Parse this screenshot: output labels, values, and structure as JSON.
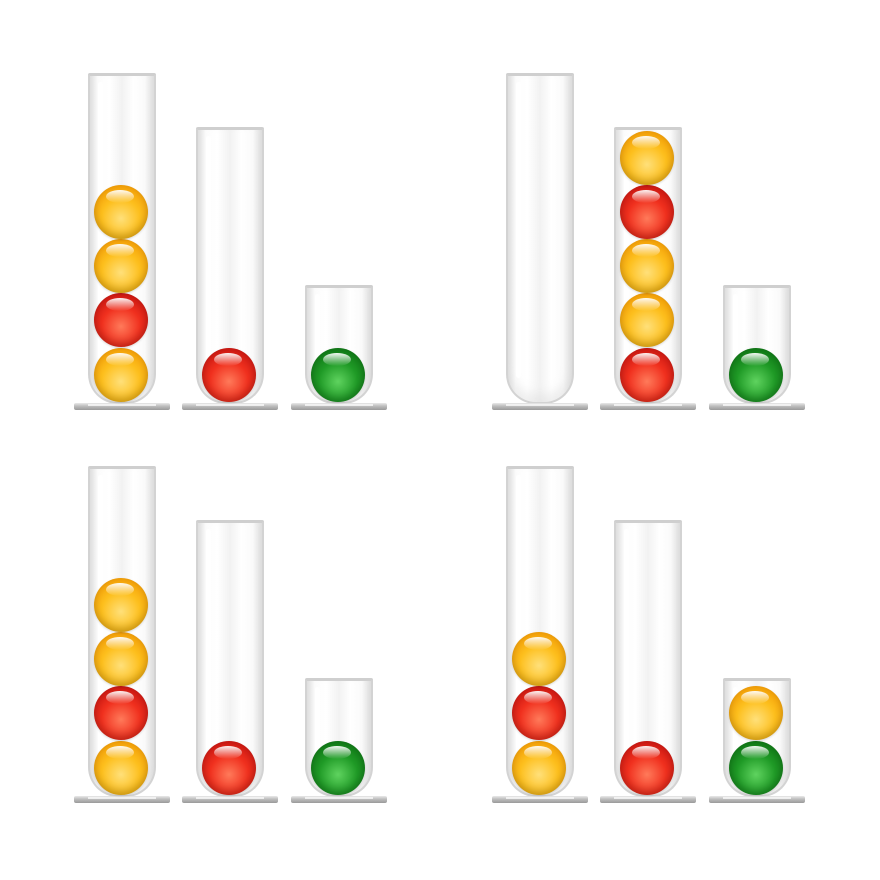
{
  "colors": {
    "yellow": "#fdbf1d",
    "red": "#f0301e",
    "green": "#1f9a26"
  },
  "panels": [
    {
      "id": 1,
      "tubes": [
        [
          "yellow",
          "red",
          "yellow",
          "yellow"
        ],
        [
          "red"
        ],
        [
          "green"
        ]
      ]
    },
    {
      "id": 2,
      "tubes": [
        [],
        [
          "red",
          "yellow",
          "yellow",
          "red",
          "yellow"
        ],
        [
          "green"
        ]
      ]
    },
    {
      "id": 3,
      "tubes": [
        [
          "yellow",
          "red",
          "yellow",
          "yellow"
        ],
        [
          "red"
        ],
        [
          "green"
        ]
      ]
    },
    {
      "id": 4,
      "tubes": [
        [
          "yellow",
          "red",
          "yellow"
        ],
        [
          "red"
        ],
        [
          "green",
          "yellow"
        ]
      ]
    }
  ]
}
